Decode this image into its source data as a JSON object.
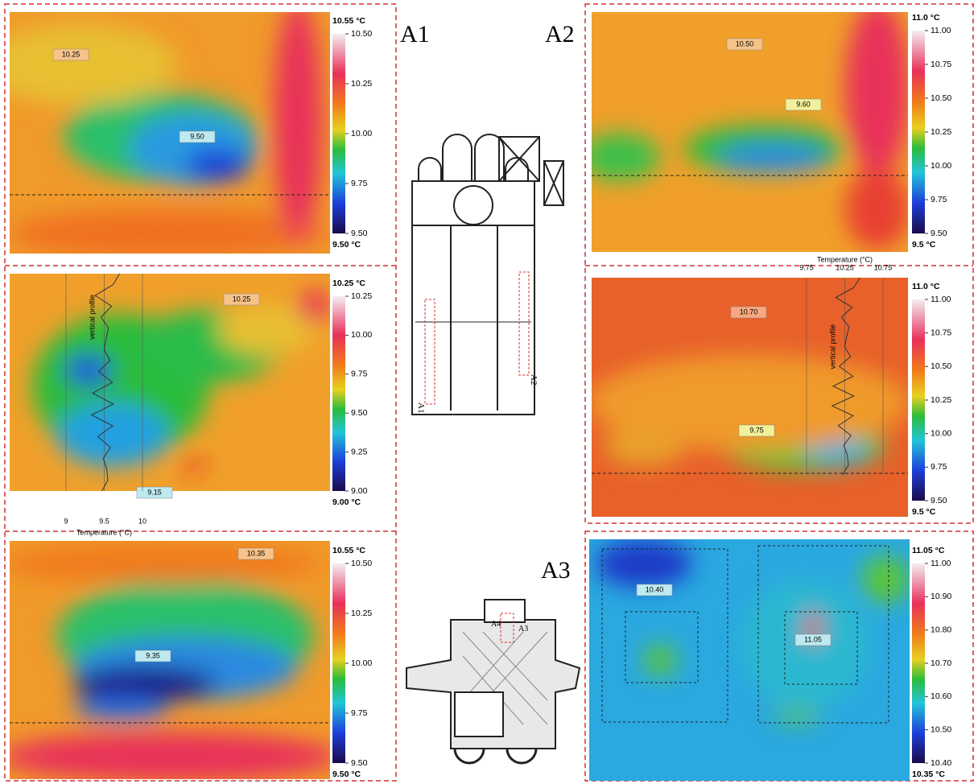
{
  "labels": {
    "a1": "A1",
    "a2": "A2",
    "a3": "A3"
  },
  "plan_labels": {
    "a1": "A1",
    "a2": "A2",
    "a3": "A3",
    "a4": "A4"
  },
  "panels": [
    {
      "scale_max": "10.55 °C",
      "scale_min": "9.50 °C",
      "ticks": [
        "10.50",
        "10.25",
        "10.00",
        "9.75",
        "9.50"
      ],
      "spots": [
        "10.25",
        "9.50"
      ]
    },
    {
      "scale_max": "10.25 °C",
      "scale_min": "9.00 °C",
      "ticks": [
        "10.25",
        "10.00",
        "9.75",
        "9.50",
        "9.25",
        "9.00"
      ],
      "spots": [
        "10.25",
        "9.15"
      ],
      "profile": {
        "label": "vertical profile",
        "axis_title": "Temperature (°C)",
        "axis_ticks": [
          "9",
          "9.5",
          "10"
        ]
      }
    },
    {
      "scale_max": "10.55 °C",
      "scale_min": "9.50 °C",
      "ticks": [
        "10.50",
        "10.25",
        "10.00",
        "9.75",
        "9.50"
      ],
      "spots": [
        "10.35",
        "9.35"
      ]
    },
    {
      "scale_max": "11.0 °C",
      "scale_min": "9.5 °C",
      "ticks": [
        "11.00",
        "10.75",
        "10.50",
        "10.25",
        "10.00",
        "9.75",
        "9.50"
      ],
      "spots": [
        "10.50",
        "9.60"
      ]
    },
    {
      "scale_max": "11.0 °C",
      "scale_min": "9.5 °C",
      "ticks": [
        "11.00",
        "10.75",
        "10.50",
        "10.25",
        "10.00",
        "9.75",
        "9.50"
      ],
      "spots": [
        "10.70",
        "9.75"
      ],
      "profile": {
        "label": "vertical profile",
        "axis_title": "Temperature (°C)",
        "axis_ticks": [
          "9.75",
          "10.25",
          "10.75"
        ]
      }
    },
    {
      "scale_max": "11.05 °C",
      "scale_min": "10.35 °C",
      "ticks": [
        "11.00",
        "10.90",
        "10.80",
        "10.70",
        "10.60",
        "10.50",
        "10.40"
      ],
      "spots": [
        "10.40",
        "11.05"
      ]
    }
  ]
}
